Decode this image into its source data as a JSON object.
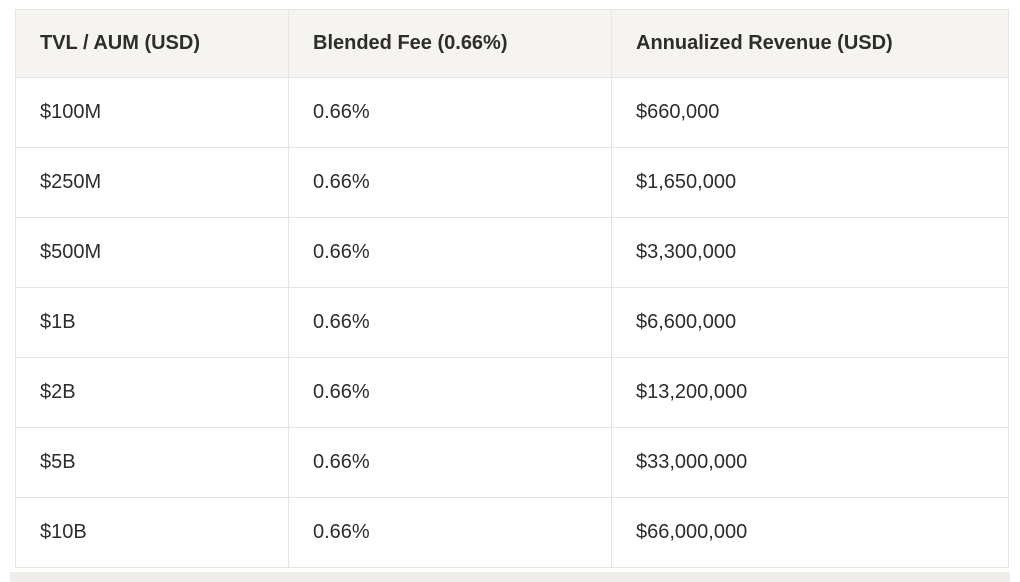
{
  "table": {
    "columns": [
      {
        "label": "TVL / AUM (USD)"
      },
      {
        "label": "Blended Fee (0.66%)"
      },
      {
        "label": "Annualized Revenue (USD)"
      }
    ],
    "rows": [
      {
        "tvl": "$100M",
        "fee": "0.66%",
        "revenue": "$660,000"
      },
      {
        "tvl": "$250M",
        "fee": "0.66%",
        "revenue": "$1,650,000"
      },
      {
        "tvl": "$500M",
        "fee": "0.66%",
        "revenue": "$3,300,000"
      },
      {
        "tvl": "$1B",
        "fee": "0.66%",
        "revenue": "$6,600,000"
      },
      {
        "tvl": "$2B",
        "fee": "0.66%",
        "revenue": "$13,200,000"
      },
      {
        "tvl": "$5B",
        "fee": "0.66%",
        "revenue": "$33,000,000"
      },
      {
        "tvl": "$10B",
        "fee": "0.66%",
        "revenue": "$66,000,000"
      }
    ]
  },
  "chart_data": {
    "type": "table",
    "title": "",
    "columns": [
      "TVL / AUM (USD)",
      "Blended Fee (0.66%)",
      "Annualized Revenue (USD)"
    ],
    "rows": [
      [
        "$100M",
        "0.66%",
        "$660,000"
      ],
      [
        "$250M",
        "0.66%",
        "$1,650,000"
      ],
      [
        "$500M",
        "0.66%",
        "$3,300,000"
      ],
      [
        "$1B",
        "0.66%",
        "$6,600,000"
      ],
      [
        "$2B",
        "0.66%",
        "$13,200,000"
      ],
      [
        "$5B",
        "0.66%",
        "$33,000,000"
      ],
      [
        "$10B",
        "0.66%",
        "$66,000,000"
      ]
    ]
  },
  "colors": {
    "header_bg": "#f5f4f2",
    "body_bg": "#ffffff",
    "border": "#e7e5e2",
    "text": "#2e2d2b",
    "below_strip": "#efedea"
  }
}
